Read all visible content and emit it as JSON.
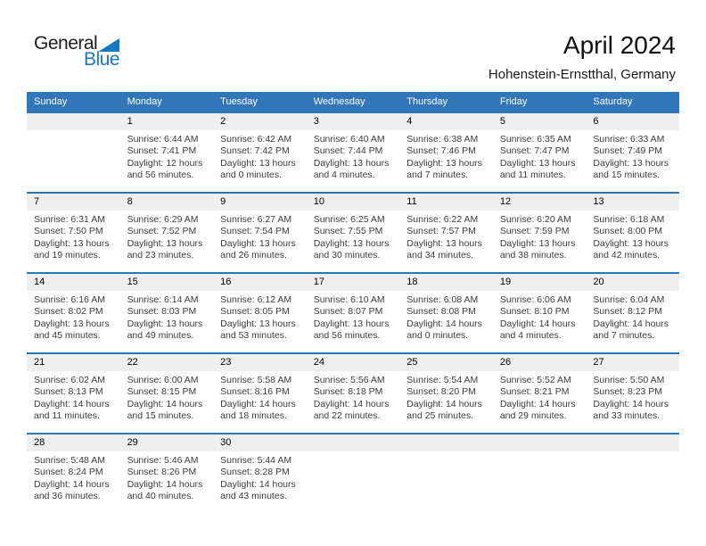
{
  "logo": {
    "line1": "General",
    "line2": "Blue"
  },
  "header": {
    "title": "April 2024",
    "location": "Hohenstein-Ernstthal, Germany"
  },
  "colors": {
    "header_blue": "#3076B9",
    "row_border_blue": "#2E75B6",
    "band_gray": "#EFEFEF",
    "logo_blue": "#1779C4"
  },
  "calendar": {
    "day_headers": [
      "Sunday",
      "Monday",
      "Tuesday",
      "Wednesday",
      "Thursday",
      "Friday",
      "Saturday"
    ],
    "weeks": [
      [
        null,
        {
          "date": "1",
          "sunrise": "Sunrise: 6:44 AM",
          "sunset": "Sunset: 7:41 PM",
          "daylight1": "Daylight: 12 hours",
          "daylight2": "and 56 minutes."
        },
        {
          "date": "2",
          "sunrise": "Sunrise: 6:42 AM",
          "sunset": "Sunset: 7:42 PM",
          "daylight1": "Daylight: 13 hours",
          "daylight2": "and 0 minutes."
        },
        {
          "date": "3",
          "sunrise": "Sunrise: 6:40 AM",
          "sunset": "Sunset: 7:44 PM",
          "daylight1": "Daylight: 13 hours",
          "daylight2": "and 4 minutes."
        },
        {
          "date": "4",
          "sunrise": "Sunrise: 6:38 AM",
          "sunset": "Sunset: 7:46 PM",
          "daylight1": "Daylight: 13 hours",
          "daylight2": "and 7 minutes."
        },
        {
          "date": "5",
          "sunrise": "Sunrise: 6:35 AM",
          "sunset": "Sunset: 7:47 PM",
          "daylight1": "Daylight: 13 hours",
          "daylight2": "and 11 minutes."
        },
        {
          "date": "6",
          "sunrise": "Sunrise: 6:33 AM",
          "sunset": "Sunset: 7:49 PM",
          "daylight1": "Daylight: 13 hours",
          "daylight2": "and 15 minutes."
        }
      ],
      [
        {
          "date": "7",
          "sunrise": "Sunrise: 6:31 AM",
          "sunset": "Sunset: 7:50 PM",
          "daylight1": "Daylight: 13 hours",
          "daylight2": "and 19 minutes."
        },
        {
          "date": "8",
          "sunrise": "Sunrise: 6:29 AM",
          "sunset": "Sunset: 7:52 PM",
          "daylight1": "Daylight: 13 hours",
          "daylight2": "and 23 minutes."
        },
        {
          "date": "9",
          "sunrise": "Sunrise: 6:27 AM",
          "sunset": "Sunset: 7:54 PM",
          "daylight1": "Daylight: 13 hours",
          "daylight2": "and 26 minutes."
        },
        {
          "date": "10",
          "sunrise": "Sunrise: 6:25 AM",
          "sunset": "Sunset: 7:55 PM",
          "daylight1": "Daylight: 13 hours",
          "daylight2": "and 30 minutes."
        },
        {
          "date": "11",
          "sunrise": "Sunrise: 6:22 AM",
          "sunset": "Sunset: 7:57 PM",
          "daylight1": "Daylight: 13 hours",
          "daylight2": "and 34 minutes."
        },
        {
          "date": "12",
          "sunrise": "Sunrise: 6:20 AM",
          "sunset": "Sunset: 7:59 PM",
          "daylight1": "Daylight: 13 hours",
          "daylight2": "and 38 minutes."
        },
        {
          "date": "13",
          "sunrise": "Sunrise: 6:18 AM",
          "sunset": "Sunset: 8:00 PM",
          "daylight1": "Daylight: 13 hours",
          "daylight2": "and 42 minutes."
        }
      ],
      [
        {
          "date": "14",
          "sunrise": "Sunrise: 6:16 AM",
          "sunset": "Sunset: 8:02 PM",
          "daylight1": "Daylight: 13 hours",
          "daylight2": "and 45 minutes."
        },
        {
          "date": "15",
          "sunrise": "Sunrise: 6:14 AM",
          "sunset": "Sunset: 8:03 PM",
          "daylight1": "Daylight: 13 hours",
          "daylight2": "and 49 minutes."
        },
        {
          "date": "16",
          "sunrise": "Sunrise: 6:12 AM",
          "sunset": "Sunset: 8:05 PM",
          "daylight1": "Daylight: 13 hours",
          "daylight2": "and 53 minutes."
        },
        {
          "date": "17",
          "sunrise": "Sunrise: 6:10 AM",
          "sunset": "Sunset: 8:07 PM",
          "daylight1": "Daylight: 13 hours",
          "daylight2": "and 56 minutes."
        },
        {
          "date": "18",
          "sunrise": "Sunrise: 6:08 AM",
          "sunset": "Sunset: 8:08 PM",
          "daylight1": "Daylight: 14 hours",
          "daylight2": "and 0 minutes."
        },
        {
          "date": "19",
          "sunrise": "Sunrise: 6:06 AM",
          "sunset": "Sunset: 8:10 PM",
          "daylight1": "Daylight: 14 hours",
          "daylight2": "and 4 minutes."
        },
        {
          "date": "20",
          "sunrise": "Sunrise: 6:04 AM",
          "sunset": "Sunset: 8:12 PM",
          "daylight1": "Daylight: 14 hours",
          "daylight2": "and 7 minutes."
        }
      ],
      [
        {
          "date": "21",
          "sunrise": "Sunrise: 6:02 AM",
          "sunset": "Sunset: 8:13 PM",
          "daylight1": "Daylight: 14 hours",
          "daylight2": "and 11 minutes."
        },
        {
          "date": "22",
          "sunrise": "Sunrise: 6:00 AM",
          "sunset": "Sunset: 8:15 PM",
          "daylight1": "Daylight: 14 hours",
          "daylight2": "and 15 minutes."
        },
        {
          "date": "23",
          "sunrise": "Sunrise: 5:58 AM",
          "sunset": "Sunset: 8:16 PM",
          "daylight1": "Daylight: 14 hours",
          "daylight2": "and 18 minutes."
        },
        {
          "date": "24",
          "sunrise": "Sunrise: 5:56 AM",
          "sunset": "Sunset: 8:18 PM",
          "daylight1": "Daylight: 14 hours",
          "daylight2": "and 22 minutes."
        },
        {
          "date": "25",
          "sunrise": "Sunrise: 5:54 AM",
          "sunset": "Sunset: 8:20 PM",
          "daylight1": "Daylight: 14 hours",
          "daylight2": "and 25 minutes."
        },
        {
          "date": "26",
          "sunrise": "Sunrise: 5:52 AM",
          "sunset": "Sunset: 8:21 PM",
          "daylight1": "Daylight: 14 hours",
          "daylight2": "and 29 minutes."
        },
        {
          "date": "27",
          "sunrise": "Sunrise: 5:50 AM",
          "sunset": "Sunset: 8:23 PM",
          "daylight1": "Daylight: 14 hours",
          "daylight2": "and 33 minutes."
        }
      ],
      [
        {
          "date": "28",
          "sunrise": "Sunrise: 5:48 AM",
          "sunset": "Sunset: 8:24 PM",
          "daylight1": "Daylight: 14 hours",
          "daylight2": "and 36 minutes."
        },
        {
          "date": "29",
          "sunrise": "Sunrise: 5:46 AM",
          "sunset": "Sunset: 8:26 PM",
          "daylight1": "Daylight: 14 hours",
          "daylight2": "and 40 minutes."
        },
        {
          "date": "30",
          "sunrise": "Sunrise: 5:44 AM",
          "sunset": "Sunset: 8:28 PM",
          "daylight1": "Daylight: 14 hours",
          "daylight2": "and 43 minutes."
        },
        null,
        null,
        null,
        null
      ]
    ]
  }
}
